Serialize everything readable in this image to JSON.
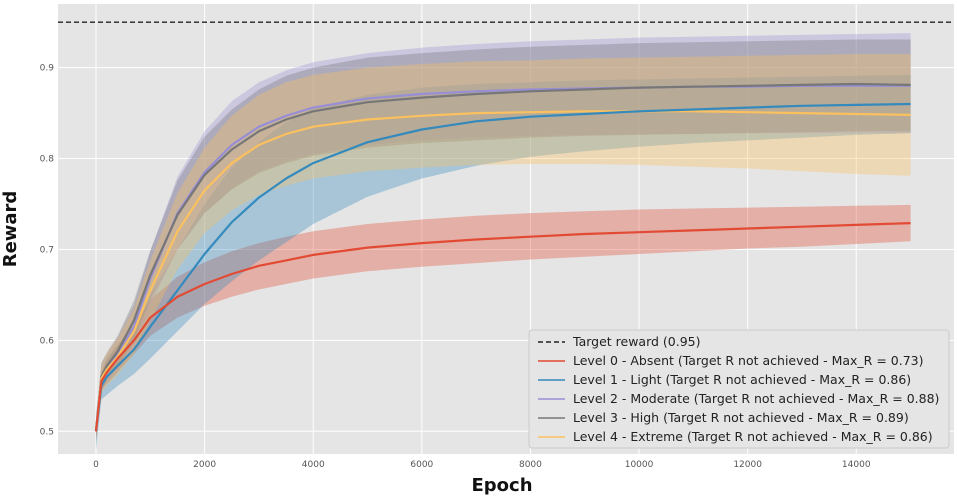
{
  "chart_data": {
    "type": "line",
    "title": "",
    "xlabel": "Epoch",
    "ylabel": "Reward",
    "xlim": [
      -700,
      15800
    ],
    "ylim": [
      0.475,
      0.97
    ],
    "xticks": [
      0,
      2000,
      4000,
      6000,
      8000,
      10000,
      12000,
      14000
    ],
    "yticks": [
      0.5,
      0.6,
      0.7,
      0.8,
      0.9
    ],
    "xtick_labels": [
      "0",
      "2000",
      "4000",
      "6000",
      "8000",
      "10000",
      "12000",
      "14000"
    ],
    "ytick_labels": [
      "0.5",
      "0.6",
      "0.7",
      "0.8",
      "0.9"
    ],
    "grid": true,
    "legend_position": "bottom-right",
    "target": {
      "label": "Target reward (0.95)",
      "value": 0.95,
      "color": "#222222"
    },
    "x": [
      0,
      100,
      200,
      400,
      700,
      1000,
      1500,
      2000,
      2500,
      3000,
      3500,
      4000,
      5000,
      6000,
      7000,
      8000,
      9000,
      10000,
      11000,
      12000,
      13000,
      14000,
      15000
    ],
    "series": [
      {
        "name": "Level 0 - Absent (Target R not achieved - Max_R = 0.73)",
        "color": "#e24a33",
        "values": [
          0.5,
          0.555,
          0.565,
          0.58,
          0.6,
          0.625,
          0.648,
          0.662,
          0.673,
          0.682,
          0.688,
          0.694,
          0.702,
          0.707,
          0.711,
          0.714,
          0.717,
          0.719,
          0.721,
          0.723,
          0.725,
          0.727,
          0.729
        ],
        "lower": [
          0.49,
          0.545,
          0.552,
          0.565,
          0.585,
          0.605,
          0.625,
          0.638,
          0.648,
          0.656,
          0.662,
          0.668,
          0.676,
          0.681,
          0.685,
          0.689,
          0.692,
          0.695,
          0.698,
          0.701,
          0.703,
          0.706,
          0.709
        ],
        "upper": [
          0.51,
          0.565,
          0.578,
          0.595,
          0.615,
          0.645,
          0.67,
          0.686,
          0.698,
          0.707,
          0.714,
          0.72,
          0.728,
          0.733,
          0.737,
          0.74,
          0.742,
          0.744,
          0.745,
          0.746,
          0.747,
          0.748,
          0.749
        ]
      },
      {
        "name": "Level 1 - Light (Target R not achieved - Max_R = 0.86)",
        "color": "#348abd",
        "values": [
          0.5,
          0.55,
          0.56,
          0.572,
          0.59,
          0.615,
          0.655,
          0.695,
          0.73,
          0.757,
          0.778,
          0.795,
          0.818,
          0.832,
          0.841,
          0.846,
          0.849,
          0.852,
          0.854,
          0.856,
          0.858,
          0.859,
          0.86
        ],
        "lower": [
          0.48,
          0.535,
          0.54,
          0.55,
          0.563,
          0.58,
          0.61,
          0.64,
          0.665,
          0.688,
          0.708,
          0.728,
          0.758,
          0.778,
          0.792,
          0.802,
          0.808,
          0.813,
          0.817,
          0.82,
          0.823,
          0.826,
          0.828
        ],
        "upper": [
          0.52,
          0.565,
          0.58,
          0.595,
          0.617,
          0.65,
          0.7,
          0.75,
          0.79,
          0.818,
          0.84,
          0.855,
          0.87,
          0.878,
          0.882,
          0.884,
          0.886,
          0.887,
          0.888,
          0.889,
          0.89,
          0.891,
          0.892
        ]
      },
      {
        "name": "Level 2 - Moderate (Target R not achieved - Max_R = 0.88)",
        "color": "#988ed5",
        "values": [
          0.5,
          0.56,
          0.57,
          0.585,
          0.615,
          0.668,
          0.74,
          0.785,
          0.815,
          0.835,
          0.847,
          0.856,
          0.866,
          0.871,
          0.874,
          0.876,
          0.877,
          0.878,
          0.879,
          0.879,
          0.88,
          0.88,
          0.88
        ],
        "lower": [
          0.49,
          0.545,
          0.555,
          0.567,
          0.592,
          0.638,
          0.7,
          0.74,
          0.767,
          0.786,
          0.797,
          0.805,
          0.815,
          0.82,
          0.823,
          0.825,
          0.826,
          0.827,
          0.827,
          0.828,
          0.828,
          0.828,
          0.828
        ],
        "upper": [
          0.51,
          0.575,
          0.585,
          0.603,
          0.638,
          0.698,
          0.78,
          0.83,
          0.863,
          0.884,
          0.897,
          0.906,
          0.916,
          0.922,
          0.926,
          0.929,
          0.931,
          0.933,
          0.934,
          0.935,
          0.936,
          0.937,
          0.938
        ]
      },
      {
        "name": "Level 3 - High (Target R not achieved - Max_R = 0.89)",
        "color": "#777777",
        "values": [
          0.5,
          0.56,
          0.572,
          0.588,
          0.622,
          0.672,
          0.738,
          0.782,
          0.81,
          0.83,
          0.843,
          0.852,
          0.862,
          0.867,
          0.871,
          0.874,
          0.876,
          0.878,
          0.879,
          0.88,
          0.881,
          0.882,
          0.881
        ],
        "lower": [
          0.49,
          0.545,
          0.557,
          0.571,
          0.6,
          0.645,
          0.7,
          0.74,
          0.766,
          0.784,
          0.795,
          0.803,
          0.812,
          0.817,
          0.82,
          0.823,
          0.825,
          0.826,
          0.827,
          0.828,
          0.829,
          0.83,
          0.83
        ],
        "upper": [
          0.51,
          0.575,
          0.587,
          0.605,
          0.644,
          0.699,
          0.776,
          0.824,
          0.854,
          0.876,
          0.891,
          0.9,
          0.911,
          0.916,
          0.92,
          0.923,
          0.925,
          0.927,
          0.928,
          0.929,
          0.93,
          0.931,
          0.931
        ]
      },
      {
        "name": "Level 4 - Extreme (Target R not achieved - Max_R = 0.86)",
        "color": "#fbc15e",
        "values": [
          0.5,
          0.558,
          0.568,
          0.582,
          0.61,
          0.655,
          0.72,
          0.765,
          0.795,
          0.815,
          0.827,
          0.835,
          0.843,
          0.847,
          0.85,
          0.851,
          0.852,
          0.852,
          0.852,
          0.851,
          0.85,
          0.849,
          0.848
        ],
        "lower": [
          0.49,
          0.542,
          0.55,
          0.562,
          0.585,
          0.622,
          0.678,
          0.718,
          0.743,
          0.76,
          0.77,
          0.778,
          0.786,
          0.79,
          0.793,
          0.794,
          0.794,
          0.793,
          0.791,
          0.789,
          0.786,
          0.783,
          0.781
        ],
        "upper": [
          0.51,
          0.574,
          0.586,
          0.602,
          0.635,
          0.688,
          0.762,
          0.812,
          0.847,
          0.87,
          0.884,
          0.892,
          0.9,
          0.904,
          0.907,
          0.908,
          0.91,
          0.911,
          0.912,
          0.913,
          0.914,
          0.915,
          0.915
        ]
      }
    ]
  }
}
